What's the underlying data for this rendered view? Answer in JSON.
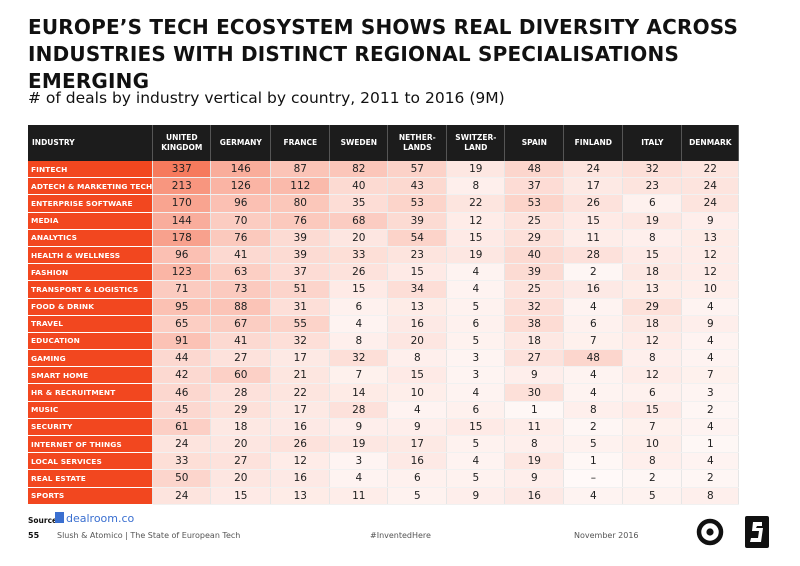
{
  "title": "EUROPE’S TECH ECOSYSTEM SHOWS REAL DIVERSITY ACROSS INDUSTRIES WITH DISTINCT REGIONAL SPECIALISATIONS EMERGING",
  "subtitle": "# of deals by industry vertical by country, 2011 to 2016 (9M)",
  "chart_data": {
    "type": "table",
    "title": "# of deals by industry vertical by country, 2011 to 2016 (9M)",
    "header_label": "INDUSTRY",
    "columns": [
      "UNITED\nKINGDOM",
      "GERMANY",
      "FRANCE",
      "SWEDEN",
      "NETHER-\nLANDS",
      "SWITZER-\nLAND",
      "SPAIN",
      "FINLAND",
      "ITALY",
      "DENMARK"
    ],
    "rows": [
      {
        "industry": "FINTECH",
        "values": [
          337,
          146,
          87,
          82,
          57,
          19,
          48,
          24,
          32,
          22
        ]
      },
      {
        "industry": "ADTECH & MARKETING TECH",
        "values": [
          213,
          126,
          112,
          40,
          43,
          8,
          37,
          17,
          23,
          24
        ]
      },
      {
        "industry": "ENTERPRISE SOFTWARE",
        "values": [
          170,
          96,
          80,
          35,
          53,
          22,
          53,
          26,
          6,
          24
        ]
      },
      {
        "industry": "MEDIA",
        "values": [
          144,
          70,
          76,
          68,
          39,
          12,
          25,
          15,
          19,
          9
        ]
      },
      {
        "industry": "ANALYTICS",
        "values": [
          178,
          76,
          39,
          20,
          54,
          15,
          29,
          11,
          8,
          13
        ]
      },
      {
        "industry": "HEALTH & WELLNESS",
        "values": [
          96,
          41,
          39,
          33,
          23,
          19,
          40,
          28,
          15,
          12
        ]
      },
      {
        "industry": "FASHION",
        "values": [
          123,
          63,
          37,
          26,
          15,
          4,
          39,
          2,
          18,
          12
        ]
      },
      {
        "industry": "TRANSPORT & LOGISTICS",
        "values": [
          71,
          73,
          51,
          15,
          34,
          4,
          25,
          16,
          13,
          10
        ]
      },
      {
        "industry": "FOOD & DRINK",
        "values": [
          95,
          88,
          31,
          6,
          13,
          5,
          32,
          4,
          29,
          4
        ]
      },
      {
        "industry": "TRAVEL",
        "values": [
          65,
          67,
          55,
          4,
          16,
          6,
          38,
          6,
          18,
          9
        ]
      },
      {
        "industry": "EDUCATION",
        "values": [
          91,
          41,
          32,
          8,
          20,
          5,
          18,
          7,
          12,
          4
        ]
      },
      {
        "industry": "GAMING",
        "values": [
          44,
          27,
          17,
          32,
          8,
          3,
          27,
          48,
          8,
          4
        ]
      },
      {
        "industry": "SMART HOME",
        "values": [
          42,
          60,
          21,
          7,
          15,
          3,
          9,
          4,
          12,
          7
        ]
      },
      {
        "industry": "HR & RECRUITMENT",
        "values": [
          46,
          28,
          22,
          14,
          10,
          4,
          30,
          4,
          6,
          3
        ]
      },
      {
        "industry": "MUSIC",
        "values": [
          45,
          29,
          17,
          28,
          4,
          6,
          1,
          8,
          15,
          2
        ]
      },
      {
        "industry": "SECURITY",
        "values": [
          61,
          18,
          16,
          9,
          9,
          15,
          11,
          2,
          7,
          4
        ]
      },
      {
        "industry": "INTERNET OF THINGS",
        "values": [
          24,
          20,
          26,
          19,
          17,
          5,
          8,
          5,
          10,
          1
        ]
      },
      {
        "industry": "LOCAL SERVICES",
        "values": [
          33,
          27,
          12,
          3,
          16,
          4,
          19,
          1,
          8,
          4
        ]
      },
      {
        "industry": "REAL ESTATE",
        "values": [
          50,
          20,
          16,
          4,
          6,
          5,
          9,
          "–",
          2,
          2
        ]
      },
      {
        "industry": "SPORTS",
        "values": [
          24,
          15,
          13,
          11,
          5,
          9,
          16,
          4,
          5,
          8
        ]
      }
    ],
    "heat_color": "#f2471f"
  },
  "footer": {
    "source_label": "Source:",
    "source_name": "dealroom.co",
    "page_number": "55",
    "publisher": "Slush & Atomico  |  The State of European Tech",
    "hashtag": "#InventedHere",
    "date": "November 2016"
  },
  "colors": {
    "accent": "#f2471f",
    "header_bg": "#1c1c1c",
    "source_link": "#3a6fd0"
  }
}
